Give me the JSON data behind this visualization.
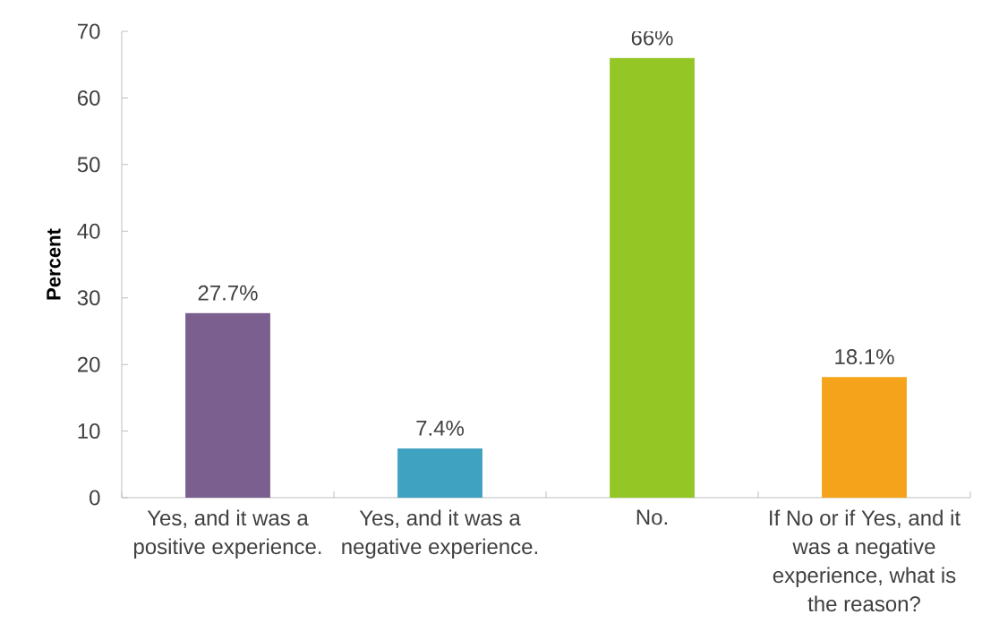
{
  "chart_data": {
    "type": "bar",
    "ylabel": "Percent",
    "categories": [
      "Yes, and it was a positive experience.",
      "Yes, and it was a negative experience.",
      "No.",
      "If No or if Yes, and it was a negative experience, what is the reason?"
    ],
    "values": [
      27.7,
      7.4,
      66,
      18.1
    ],
    "colors": [
      "#7b5f8f",
      "#3fa2c1",
      "#94c626",
      "#f5a31a"
    ],
    "value_labels": [
      "27.7%",
      "7.4%",
      "66%",
      "18.1%"
    ],
    "ylim": [
      0,
      70
    ],
    "yticks": [
      0,
      10,
      20,
      30,
      40,
      50,
      60,
      70
    ]
  }
}
